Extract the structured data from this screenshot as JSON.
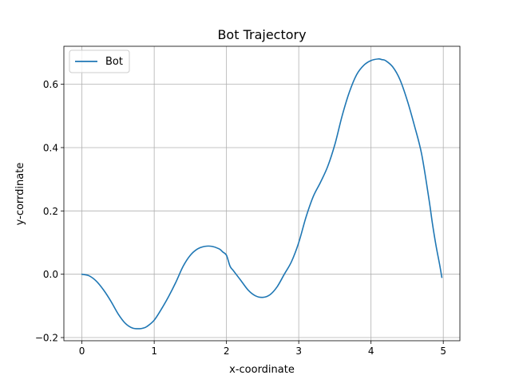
{
  "chart_data": {
    "type": "line",
    "title": "Bot Trajectory",
    "xlabel": "x-coordinate",
    "ylabel": "y-corrdinate",
    "xlim": [
      -0.25,
      5.23
    ],
    "ylim": [
      -0.21,
      0.72
    ],
    "xticks": [
      0,
      1,
      2,
      3,
      4,
      5
    ],
    "xtick_labels": [
      "0",
      "1",
      "2",
      "3",
      "4",
      "5"
    ],
    "yticks": [
      -0.2,
      0.0,
      0.2,
      0.4,
      0.6
    ],
    "ytick_labels": [
      "−0.2",
      "0.0",
      "0.2",
      "0.4",
      "0.6"
    ],
    "grid": true,
    "legend_position": "upper left",
    "colors": {
      "series": "#1f77b4",
      "grid": "#b0b0b0"
    },
    "series": [
      {
        "name": "Bot",
        "x": [
          0.0,
          0.1,
          0.2,
          0.3,
          0.4,
          0.5,
          0.6,
          0.7,
          0.8,
          0.85,
          0.9,
          1.0,
          1.1,
          1.2,
          1.3,
          1.4,
          1.5,
          1.6,
          1.7,
          1.8,
          1.9,
          1.95,
          2.0,
          2.05,
          2.1,
          2.2,
          2.3,
          2.4,
          2.5,
          2.6,
          2.7,
          2.8,
          2.9,
          3.0,
          3.1,
          3.2,
          3.3,
          3.4,
          3.5,
          3.6,
          3.7,
          3.8,
          3.9,
          4.0,
          4.1,
          4.15,
          4.2,
          4.3,
          4.4,
          4.5,
          4.6,
          4.7,
          4.8,
          4.85,
          4.9,
          4.95,
          4.98
        ],
        "y": [
          0.0,
          -0.005,
          -0.022,
          -0.05,
          -0.085,
          -0.125,
          -0.155,
          -0.17,
          -0.172,
          -0.17,
          -0.165,
          -0.145,
          -0.11,
          -0.07,
          -0.025,
          0.025,
          0.06,
          0.08,
          0.088,
          0.088,
          0.08,
          0.07,
          0.06,
          0.025,
          0.01,
          -0.02,
          -0.05,
          -0.068,
          -0.073,
          -0.065,
          -0.04,
          0.0,
          0.04,
          0.1,
          0.18,
          0.245,
          0.29,
          0.34,
          0.41,
          0.5,
          0.575,
          0.63,
          0.66,
          0.675,
          0.68,
          0.678,
          0.675,
          0.655,
          0.615,
          0.55,
          0.47,
          0.38,
          0.24,
          0.16,
          0.09,
          0.03,
          -0.01
        ]
      }
    ]
  }
}
